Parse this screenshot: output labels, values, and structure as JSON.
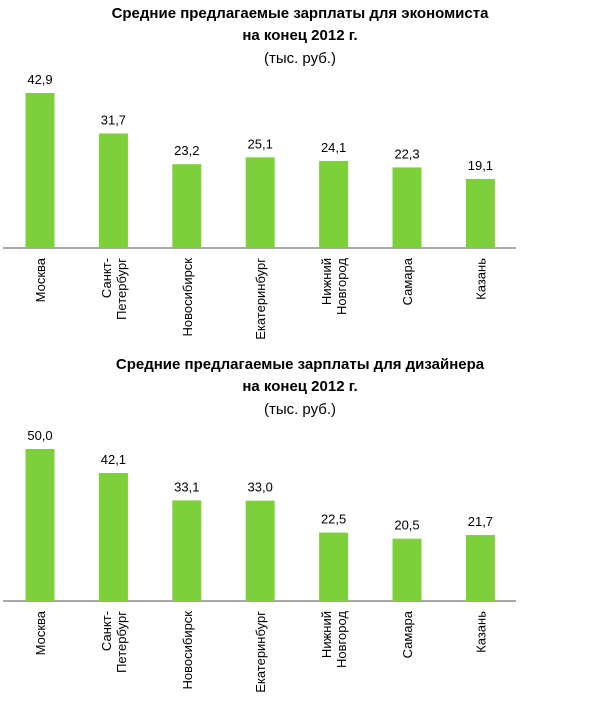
{
  "chart_data": [
    {
      "type": "bar",
      "title": "Средние предлагаемые зарплаты  для экономиста",
      "subtitle": "на конец 2012 г.",
      "unit": "(тыс. руб.)",
      "categories": [
        [
          "Москва"
        ],
        [
          "Санкт-",
          "Петербург"
        ],
        [
          "Новосибирск"
        ],
        [
          "Екатеринбург"
        ],
        [
          "Нижний",
          "Новгород"
        ],
        [
          "Самара"
        ],
        [
          "Казань"
        ]
      ],
      "values": [
        42.9,
        31.7,
        23.2,
        25.1,
        24.1,
        22.3,
        19.1
      ],
      "value_labels": [
        "42,9",
        "31,7",
        "23,2",
        "25,1",
        "24,1",
        "22,3",
        "19,1"
      ],
      "ylim": [
        0,
        42.9
      ],
      "grid": false,
      "color": "#7ed03a"
    },
    {
      "type": "bar",
      "title": "Средние предлагаемые зарплаты  для дизайнера",
      "subtitle": "на конец 2012 г.",
      "unit": "(тыс. руб.)",
      "categories": [
        [
          "Москва"
        ],
        [
          "Санкт-",
          "Петербург"
        ],
        [
          "Новосибирск"
        ],
        [
          "Екатеринбург"
        ],
        [
          "Нижний",
          "Новгород"
        ],
        [
          "Самара"
        ],
        [
          "Казань"
        ]
      ],
      "values": [
        50.0,
        42.1,
        33.1,
        33.0,
        22.5,
        20.5,
        21.7
      ],
      "value_labels": [
        "50,0",
        "42,1",
        "33,1",
        "33,0",
        "22,5",
        "20,5",
        "21,7"
      ],
      "ylim": [
        0,
        50.0
      ],
      "grid": false,
      "color": "#7ed03a"
    }
  ]
}
